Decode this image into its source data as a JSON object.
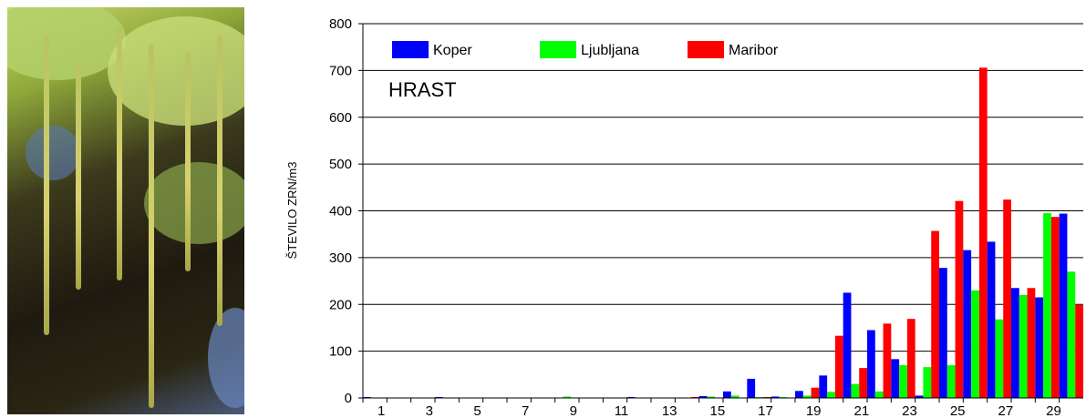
{
  "chart_data": {
    "type": "bar",
    "annotation": "HRAST",
    "y_label": "ŠTEVILO ZRN/m3",
    "categories": [
      1,
      null,
      3,
      null,
      5,
      null,
      7,
      null,
      9,
      null,
      11,
      null,
      13,
      null,
      15,
      null,
      17,
      null,
      19,
      null,
      21,
      null,
      23,
      null,
      25,
      null,
      27,
      null,
      29,
      null
    ],
    "series": [
      {
        "name": "Koper",
        "color": "#0000ff",
        "values": [
          2,
          1,
          1,
          2,
          1,
          1,
          1,
          1,
          1,
          1,
          1,
          2,
          1,
          1,
          4,
          14,
          41,
          3,
          15,
          48,
          225,
          145,
          83,
          5,
          278,
          316,
          334,
          235,
          215,
          394
        ]
      },
      {
        "name": "Ljubljana",
        "color": "#00ff00",
        "values": [
          1,
          1,
          1,
          1,
          1,
          1,
          1,
          1,
          3,
          1,
          1,
          1,
          1,
          1,
          3,
          5,
          2,
          2,
          5,
          13,
          30,
          14,
          70,
          66,
          70,
          230,
          168,
          220,
          395,
          270
        ]
      },
      {
        "name": "Maribor",
        "color": "#ff0000",
        "values": [
          1,
          1,
          1,
          1,
          1,
          1,
          1,
          1,
          1,
          1,
          1,
          1,
          1,
          2,
          1,
          1,
          2,
          1,
          22,
          133,
          64,
          159,
          169,
          357,
          421,
          706,
          424,
          235,
          387,
          199
        ]
      }
    ],
    "ylim": [
      0,
      800
    ],
    "yticks": [
      0,
      100,
      200,
      300,
      400,
      500,
      600,
      700,
      800
    ],
    "grid": true
  }
}
